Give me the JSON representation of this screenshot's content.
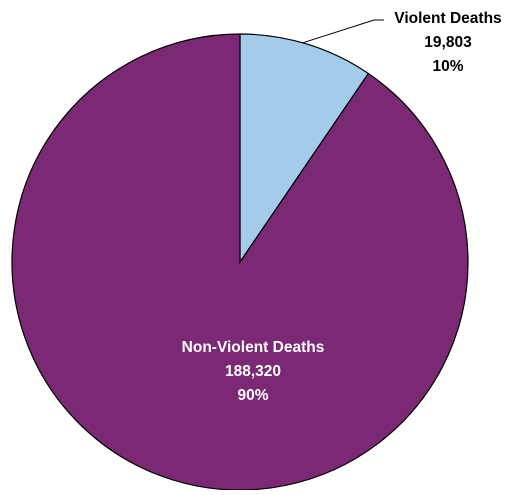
{
  "chart_data": {
    "type": "pie",
    "slices": [
      {
        "label": "Violent Deaths",
        "value": 19803,
        "value_label": "19,803",
        "percent_label": "10%",
        "color": "#A3CCEB"
      },
      {
        "label": "Non-Violent Deaths",
        "value": 188320,
        "value_label": "188,320",
        "percent_label": "90%",
        "color": "#7B2875"
      }
    ],
    "start_angle": "12 o'clock",
    "direction": "clockwise",
    "label_color_outside": "#000000",
    "label_color_inside": "#FFFFFF",
    "outline_color": "#000000"
  }
}
